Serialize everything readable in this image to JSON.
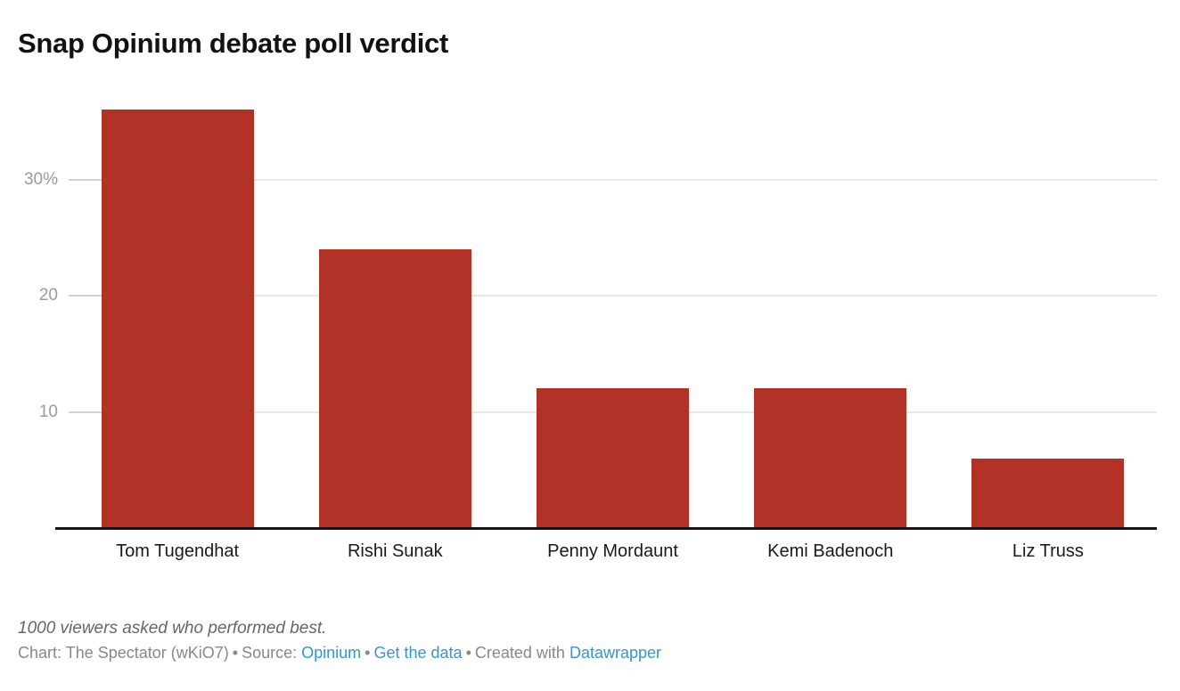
{
  "title": "Snap Opinium debate poll verdict",
  "chart_data": {
    "type": "bar",
    "categories": [
      "Tom Tugendhat",
      "Rishi Sunak",
      "Penny Mordaunt",
      "Kemi Badenoch",
      "Liz Truss"
    ],
    "values": [
      36,
      24,
      12,
      12,
      6
    ],
    "title": "Snap Opinium debate poll verdict",
    "xlabel": "",
    "ylabel": "",
    "unit": "%",
    "ylim": [
      0,
      38
    ],
    "yticks": [
      {
        "value": 10,
        "label": "10"
      },
      {
        "value": 20,
        "label": "20"
      },
      {
        "value": 30,
        "label": "30%"
      }
    ],
    "grid": "horizontal",
    "legend": "none",
    "bar_color": "#b33228"
  },
  "footnote": "1000 viewers asked who performed best.",
  "footer": {
    "credit": "Chart: The Spectator (wKiO7)",
    "separator": "•",
    "source_label": "Source:",
    "source_link": "Opinium",
    "get_data_link": "Get the data",
    "created_with_label": "Created with",
    "tool_link": "Datawrapper"
  },
  "colors": {
    "bar": "#b33228",
    "link": "#3496ce",
    "gridline": "#e7e7e7",
    "axis": "#161616",
    "ylabel_text": "#9b9b9b",
    "footer_text": "#888888"
  }
}
